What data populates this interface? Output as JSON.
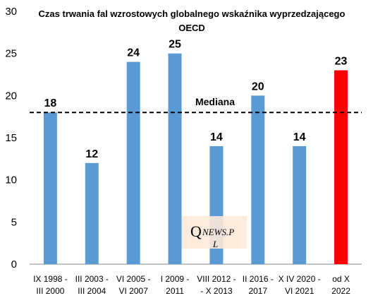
{
  "chart_data": {
    "type": "bar",
    "title_line1": "Czas trwania fal wzrostowych globalnego wskaźnika wyprzedzającego",
    "title_line2": "OECD",
    "categories": [
      [
        "IX 1998 -",
        "III 2000"
      ],
      [
        "III 2003 -",
        "III 2004"
      ],
      [
        "VI 2005 -",
        "VI 2007"
      ],
      [
        "I 2009 -",
        "2011"
      ],
      [
        "VIII 2012 -",
        "- X 2013"
      ],
      [
        "II 2016 -",
        "2017"
      ],
      [
        "X IV 2020 -",
        "VI 2021"
      ],
      [
        "od X",
        "2022"
      ]
    ],
    "values": [
      18,
      12,
      24,
      25,
      14,
      20,
      14,
      23
    ],
    "bar_colors": [
      "#5b9bd5",
      "#5b9bd5",
      "#5b9bd5",
      "#5b9bd5",
      "#5b9bd5",
      "#5b9bd5",
      "#5b9bd5",
      "#ff0000"
    ],
    "ylim": [
      0,
      30
    ],
    "yticks": [
      0,
      5,
      10,
      15,
      20,
      25,
      30
    ],
    "median": {
      "value": 18,
      "label": "Mediana"
    },
    "grid": false,
    "watermark": {
      "big": "Q",
      "small": "NEWS.P",
      "line2": "L"
    }
  }
}
